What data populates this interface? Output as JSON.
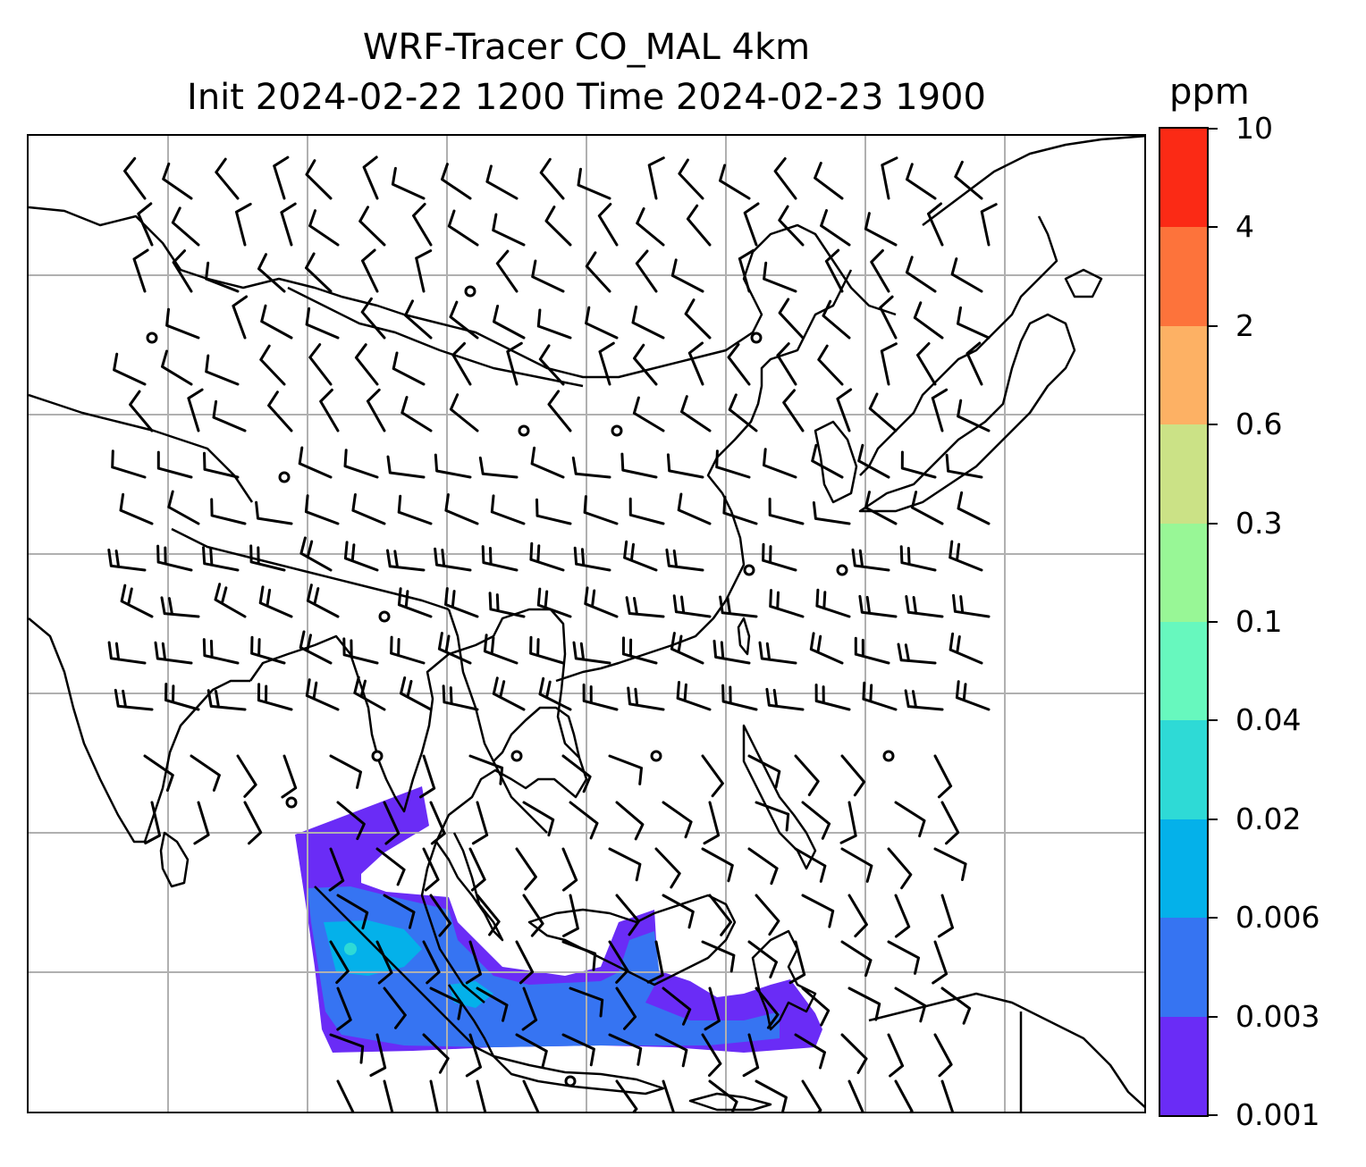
{
  "title": {
    "line1": "WRF-Tracer CO_MAL 4km",
    "line2": "Init 2024-02-22 1200 Time 2024-02-23 1900"
  },
  "colorbar": {
    "unit": "ppm",
    "ticks": [
      "0.001",
      "0.003",
      "0.006",
      "0.02",
      "0.04",
      "0.1",
      "0.3",
      "0.6",
      "2",
      "4",
      "10"
    ],
    "colors": [
      "#6a2cf6",
      "#3674f2",
      "#04b1ea",
      "#2edad6",
      "#67f8be",
      "#98f796",
      "#cbe286",
      "#fdb164",
      "#fd733b",
      "#fb2a15"
    ]
  },
  "map": {
    "gridlines": true,
    "tracer_colors": {
      "low": "#6a2cf6",
      "mid": "#3674f2",
      "high": "#04b1ea",
      "peak": "#2edad6"
    },
    "coast_color": "#000000",
    "barb_color": "#000000"
  }
}
